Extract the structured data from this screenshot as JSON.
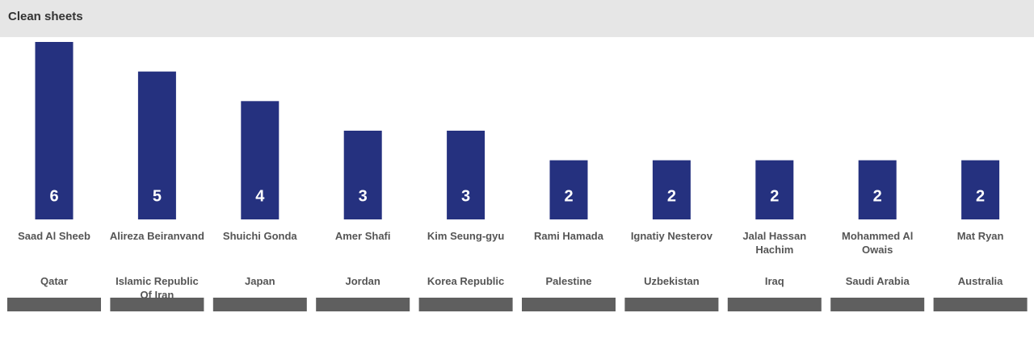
{
  "chart_data": {
    "type": "bar",
    "title": "Clean sheets",
    "categories": [
      "Saad Al Sheeb",
      "Alireza Beiranvand",
      "Shuichi Gonda",
      "Amer Shafi",
      "Kim Seung-gyu",
      "Rami Hamada",
      "Ignatiy Nesterov",
      "Jalal Hassan Hachim",
      "Mohammed Al Owais",
      "Mat Ryan"
    ],
    "countries": [
      "Qatar",
      "Islamic Republic Of Iran",
      "Japan",
      "Jordan",
      "Korea Republic",
      "Palestine",
      "Uzbekistan",
      "Iraq",
      "Saudi Arabia",
      "Australia"
    ],
    "values": [
      6,
      5,
      4,
      3,
      3,
      2,
      2,
      2,
      2,
      2
    ],
    "color": "#25317f"
  }
}
